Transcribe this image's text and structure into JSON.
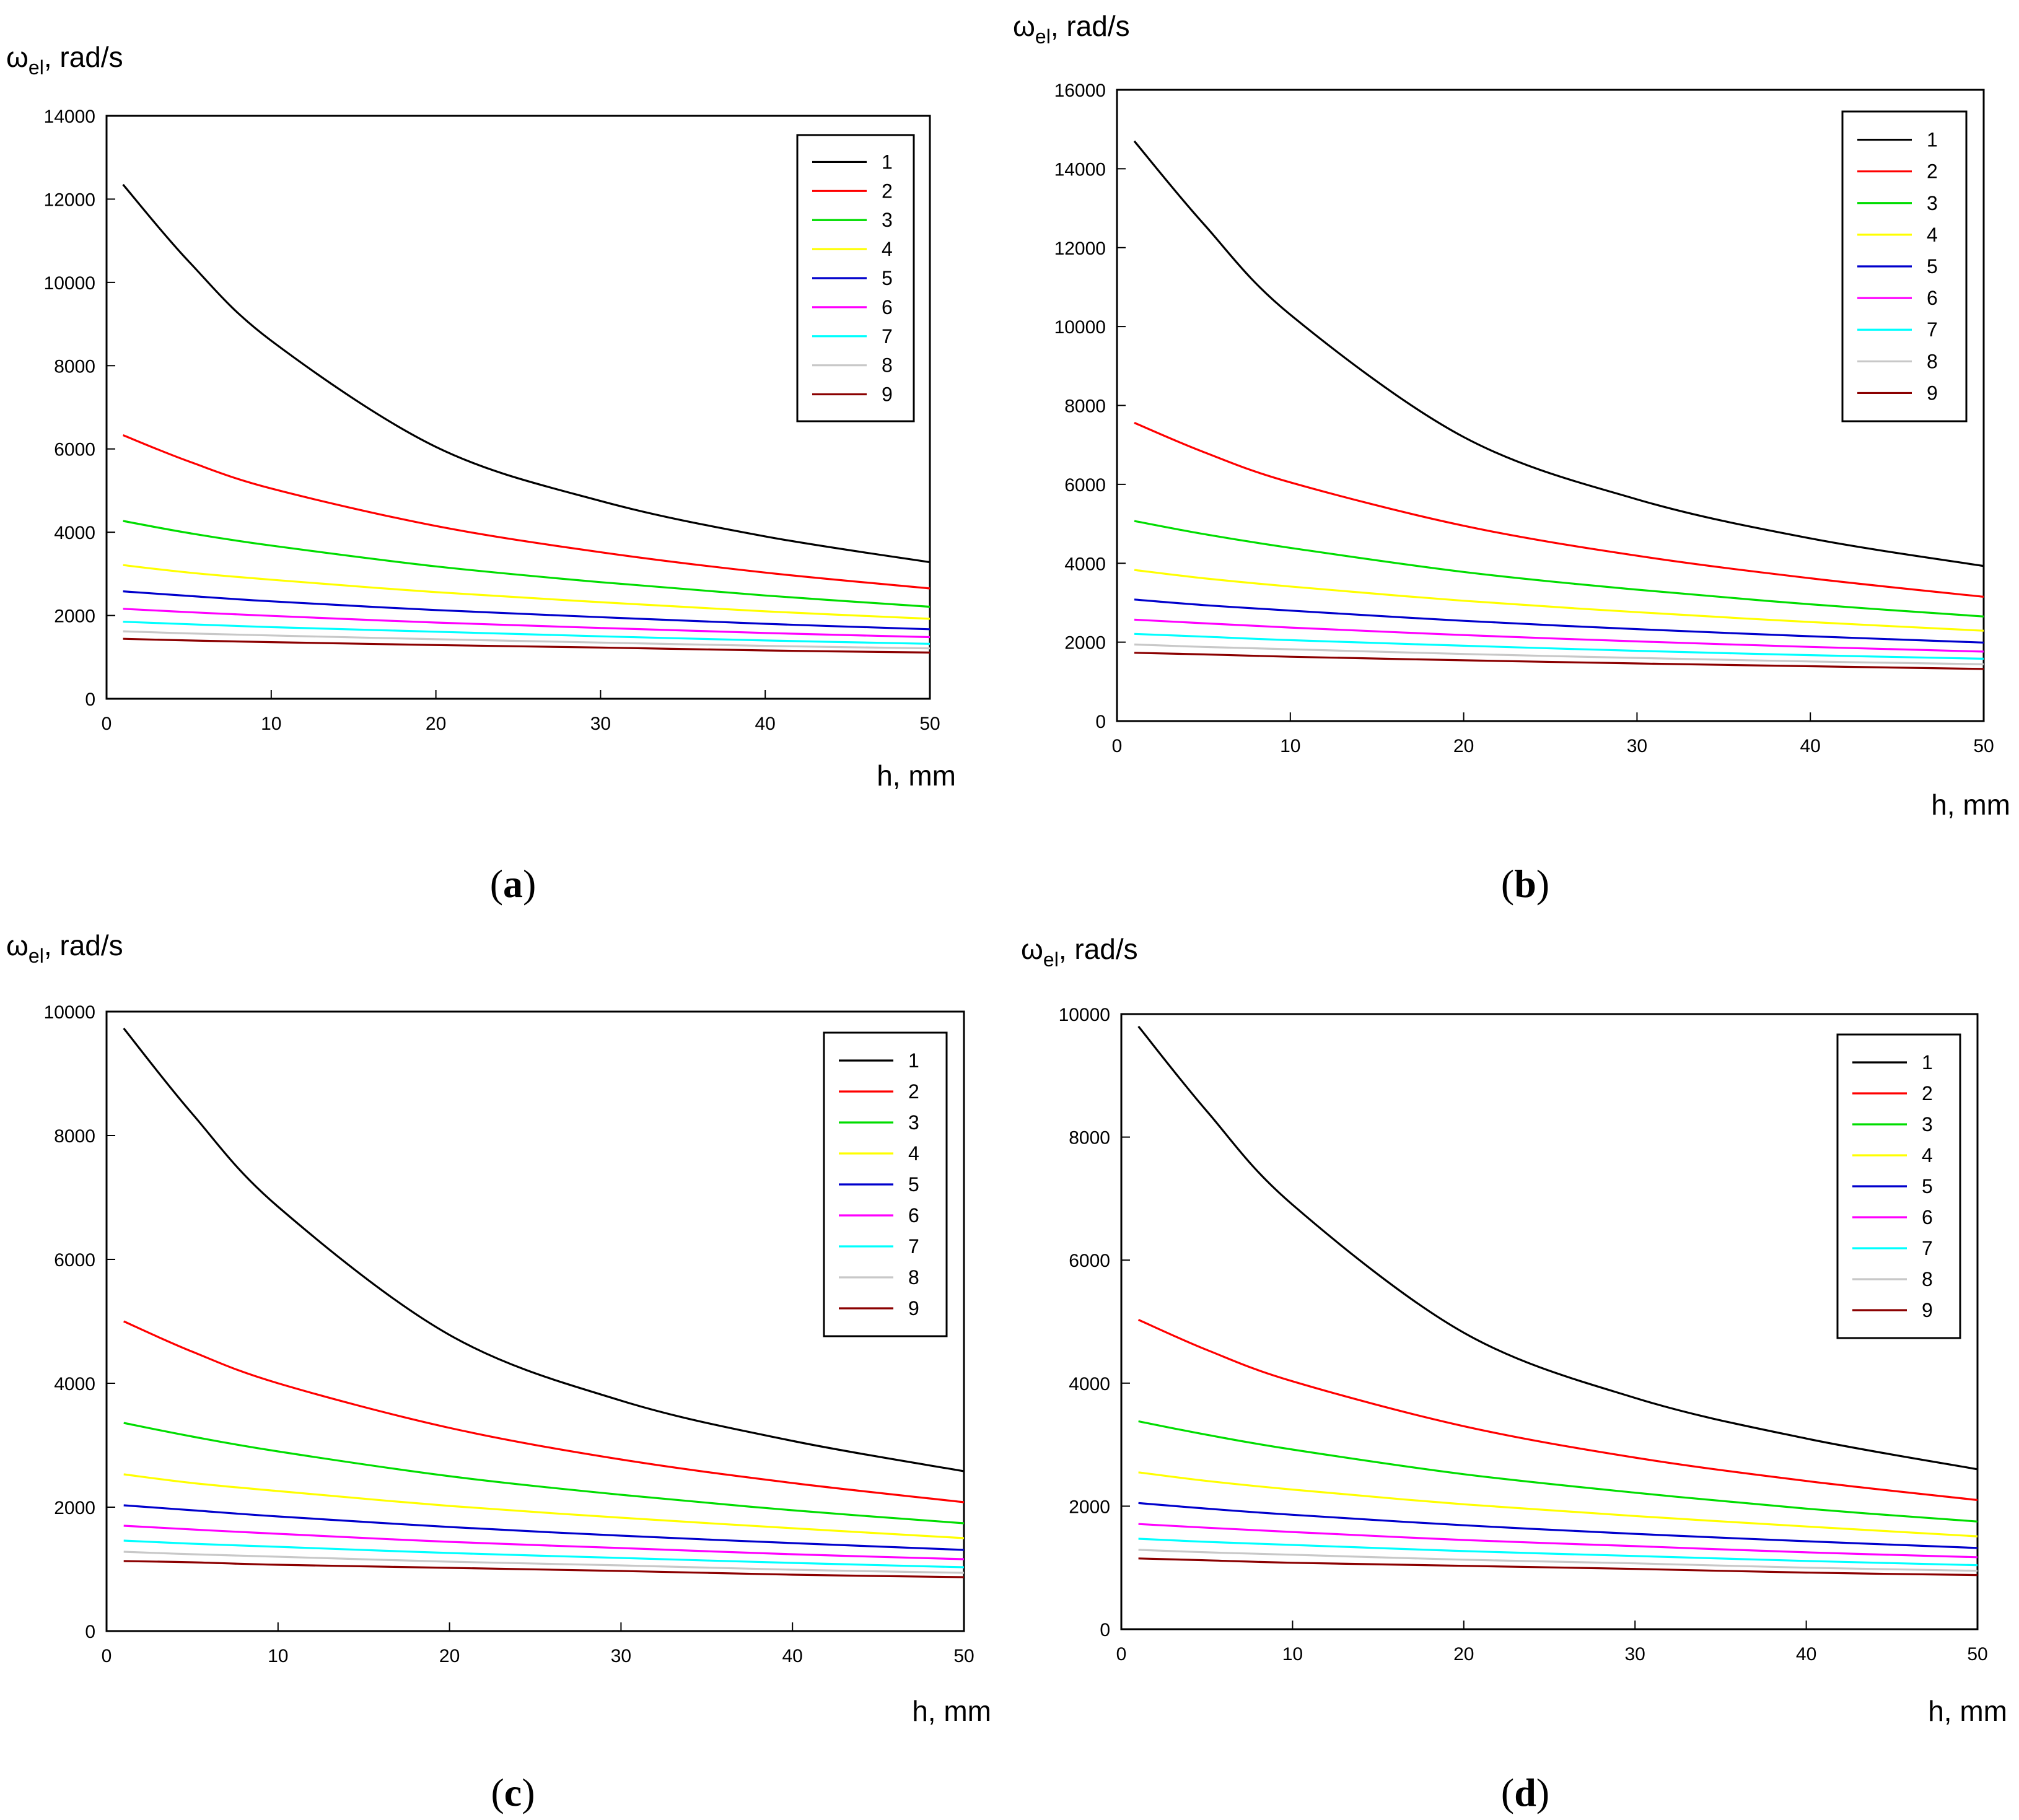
{
  "chart_data": [
    {
      "type": "line",
      "panel_label": "a",
      "ylabel_symbol": "ω",
      "ylabel_sub": "el",
      "ylabel_unit": ", rad/s",
      "xlabel": "h, mm",
      "xlim": [
        0,
        50
      ],
      "ylim": [
        0,
        14000
      ],
      "xticks": [
        0,
        10,
        20,
        30,
        40,
        50
      ],
      "yticks": [
        0,
        2000,
        4000,
        6000,
        8000,
        10000,
        12000,
        14000
      ],
      "legend_position": "top-right",
      "series": [
        {
          "name": "1",
          "color": "#000000",
          "x": [
            1,
            5,
            10,
            20,
            30,
            40,
            50
          ],
          "values": [
            12350,
            10500,
            8600,
            6050,
            4750,
            3900,
            3280
          ]
        },
        {
          "name": "2",
          "color": "#ff0000",
          "x": [
            1,
            5,
            10,
            20,
            30,
            40,
            50
          ],
          "values": [
            6330,
            5700,
            5050,
            4150,
            3520,
            3030,
            2650
          ]
        },
        {
          "name": "3",
          "color": "#00dd00",
          "x": [
            1,
            5,
            10,
            20,
            30,
            40,
            50
          ],
          "values": [
            4270,
            3980,
            3680,
            3180,
            2800,
            2480,
            2210
          ]
        },
        {
          "name": "4",
          "color": "#ffff00",
          "x": [
            1,
            5,
            10,
            20,
            30,
            40,
            50
          ],
          "values": [
            3210,
            3030,
            2860,
            2560,
            2320,
            2100,
            1920
          ]
        },
        {
          "name": "5",
          "color": "#0000cc",
          "x": [
            1,
            5,
            10,
            20,
            30,
            40,
            50
          ],
          "values": [
            2580,
            2470,
            2340,
            2130,
            1960,
            1800,
            1670
          ]
        },
        {
          "name": "6",
          "color": "#ff00ff",
          "x": [
            1,
            5,
            10,
            20,
            30,
            40,
            50
          ],
          "values": [
            2160,
            2080,
            1990,
            1830,
            1700,
            1580,
            1480
          ]
        },
        {
          "name": "7",
          "color": "#00ffff",
          "x": [
            1,
            5,
            10,
            20,
            30,
            40,
            50
          ],
          "values": [
            1850,
            1790,
            1720,
            1610,
            1500,
            1400,
            1320
          ]
        },
        {
          "name": "8",
          "color": "#c8c8c8",
          "x": [
            1,
            5,
            10,
            20,
            30,
            40,
            50
          ],
          "values": [
            1620,
            1570,
            1520,
            1430,
            1350,
            1270,
            1210
          ]
        },
        {
          "name": "9",
          "color": "#8b0000",
          "x": [
            1,
            5,
            10,
            20,
            30,
            40,
            50
          ],
          "values": [
            1440,
            1400,
            1360,
            1290,
            1230,
            1160,
            1110
          ]
        }
      ]
    },
    {
      "type": "line",
      "panel_label": "b",
      "ylabel_symbol": "ω",
      "ylabel_sub": "el",
      "ylabel_unit": ", rad/s",
      "xlabel": "h, mm",
      "xlim": [
        0,
        50
      ],
      "ylim": [
        0,
        16000
      ],
      "xticks": [
        0,
        10,
        20,
        30,
        40,
        50
      ],
      "yticks": [
        0,
        2000,
        4000,
        6000,
        8000,
        10000,
        12000,
        14000,
        16000
      ],
      "legend_position": "top-right",
      "series": [
        {
          "name": "1",
          "color": "#000000",
          "x": [
            1,
            5,
            10,
            20,
            30,
            40,
            50
          ],
          "values": [
            14700,
            12600,
            10300,
            7200,
            5620,
            4630,
            3930
          ]
        },
        {
          "name": "2",
          "color": "#ff0000",
          "x": [
            1,
            5,
            10,
            20,
            30,
            40,
            50
          ],
          "values": [
            7560,
            6820,
            6050,
            4950,
            4190,
            3620,
            3150
          ]
        },
        {
          "name": "3",
          "color": "#00dd00",
          "x": [
            1,
            5,
            10,
            20,
            30,
            40,
            50
          ],
          "values": [
            5070,
            4740,
            4390,
            3780,
            3330,
            2960,
            2650
          ]
        },
        {
          "name": "4",
          "color": "#ffff00",
          "x": [
            1,
            5,
            10,
            20,
            30,
            40,
            50
          ],
          "values": [
            3830,
            3620,
            3410,
            3050,
            2760,
            2510,
            2290
          ]
        },
        {
          "name": "5",
          "color": "#0000cc",
          "x": [
            1,
            5,
            10,
            20,
            30,
            40,
            50
          ],
          "values": [
            3080,
            2940,
            2800,
            2540,
            2330,
            2150,
            1990
          ]
        },
        {
          "name": "6",
          "color": "#ff00ff",
          "x": [
            1,
            5,
            10,
            20,
            30,
            40,
            50
          ],
          "values": [
            2570,
            2480,
            2370,
            2180,
            2020,
            1880,
            1760
          ]
        },
        {
          "name": "7",
          "color": "#00ffff",
          "x": [
            1,
            5,
            10,
            20,
            30,
            40,
            50
          ],
          "values": [
            2210,
            2140,
            2050,
            1910,
            1780,
            1670,
            1580
          ]
        },
        {
          "name": "8",
          "color": "#c8c8c8",
          "x": [
            1,
            5,
            10,
            20,
            30,
            40,
            50
          ],
          "values": [
            1940,
            1880,
            1820,
            1700,
            1600,
            1510,
            1440
          ]
        },
        {
          "name": "9",
          "color": "#8b0000",
          "x": [
            1,
            5,
            10,
            20,
            30,
            40,
            50
          ],
          "values": [
            1730,
            1690,
            1630,
            1540,
            1460,
            1390,
            1320
          ]
        }
      ]
    },
    {
      "type": "line",
      "panel_label": "c",
      "ylabel_symbol": "ω",
      "ylabel_sub": "el",
      "ylabel_unit": ", rad/s",
      "xlabel": "h, mm",
      "xlim": [
        0,
        50
      ],
      "ylim": [
        0,
        10000
      ],
      "xticks": [
        0,
        10,
        20,
        30,
        40,
        50
      ],
      "yticks": [
        0,
        2000,
        4000,
        6000,
        8000,
        10000
      ],
      "legend_position": "top-right",
      "series": [
        {
          "name": "1",
          "color": "#000000",
          "x": [
            1,
            5,
            10,
            20,
            30,
            40,
            50
          ],
          "values": [
            9730,
            8350,
            6850,
            4780,
            3720,
            3070,
            2580
          ]
        },
        {
          "name": "2",
          "color": "#ff0000",
          "x": [
            1,
            5,
            10,
            20,
            30,
            40,
            50
          ],
          "values": [
            5000,
            4510,
            4000,
            3280,
            2770,
            2390,
            2080
          ]
        },
        {
          "name": "3",
          "color": "#00dd00",
          "x": [
            1,
            5,
            10,
            20,
            30,
            40,
            50
          ],
          "values": [
            3360,
            3140,
            2900,
            2500,
            2200,
            1950,
            1740
          ]
        },
        {
          "name": "4",
          "color": "#ffff00",
          "x": [
            1,
            5,
            10,
            20,
            30,
            40,
            50
          ],
          "values": [
            2530,
            2390,
            2260,
            2020,
            1830,
            1660,
            1500
          ]
        },
        {
          "name": "5",
          "color": "#0000cc",
          "x": [
            1,
            5,
            10,
            20,
            30,
            40,
            50
          ],
          "values": [
            2030,
            1950,
            1850,
            1680,
            1540,
            1420,
            1310
          ]
        },
        {
          "name": "6",
          "color": "#ff00ff",
          "x": [
            1,
            5,
            10,
            20,
            30,
            40,
            50
          ],
          "values": [
            1700,
            1640,
            1570,
            1440,
            1340,
            1240,
            1160
          ]
        },
        {
          "name": "7",
          "color": "#00ffff",
          "x": [
            1,
            5,
            10,
            20,
            30,
            40,
            50
          ],
          "values": [
            1460,
            1410,
            1360,
            1260,
            1180,
            1100,
            1030
          ]
        },
        {
          "name": "8",
          "color": "#c8c8c8",
          "x": [
            1,
            5,
            10,
            20,
            30,
            40,
            50
          ],
          "values": [
            1280,
            1240,
            1200,
            1120,
            1060,
            990,
            940
          ]
        },
        {
          "name": "9",
          "color": "#8b0000",
          "x": [
            1,
            5,
            10,
            20,
            30,
            40,
            50
          ],
          "values": [
            1130,
            1110,
            1070,
            1020,
            970,
            910,
            870
          ]
        }
      ]
    },
    {
      "type": "line",
      "panel_label": "d",
      "ylabel_symbol": "ω",
      "ylabel_sub": "el",
      "ylabel_unit": ", rad/s",
      "xlabel": "h, mm",
      "xlim": [
        0,
        50
      ],
      "ylim": [
        0,
        10000
      ],
      "xticks": [
        0,
        10,
        20,
        30,
        40,
        50
      ],
      "yticks": [
        0,
        2000,
        4000,
        6000,
        8000,
        10000
      ],
      "legend_position": "top-right",
      "series": [
        {
          "name": "1",
          "color": "#000000",
          "x": [
            1,
            5,
            10,
            20,
            30,
            40,
            50
          ],
          "values": [
            9800,
            8420,
            6900,
            4820,
            3760,
            3100,
            2600
          ]
        },
        {
          "name": "2",
          "color": "#ff0000",
          "x": [
            1,
            5,
            10,
            20,
            30,
            40,
            50
          ],
          "values": [
            5030,
            4540,
            4030,
            3300,
            2790,
            2410,
            2100
          ]
        },
        {
          "name": "3",
          "color": "#00dd00",
          "x": [
            1,
            5,
            10,
            20,
            30,
            40,
            50
          ],
          "values": [
            3380,
            3160,
            2920,
            2520,
            2220,
            1960,
            1750
          ]
        },
        {
          "name": "4",
          "color": "#ffff00",
          "x": [
            1,
            5,
            10,
            20,
            30,
            40,
            50
          ],
          "values": [
            2550,
            2410,
            2270,
            2030,
            1840,
            1670,
            1510
          ]
        },
        {
          "name": "5",
          "color": "#0000cc",
          "x": [
            1,
            5,
            10,
            20,
            30,
            40,
            50
          ],
          "values": [
            2050,
            1960,
            1860,
            1690,
            1550,
            1430,
            1320
          ]
        },
        {
          "name": "6",
          "color": "#ff00ff",
          "x": [
            1,
            5,
            10,
            20,
            30,
            40,
            50
          ],
          "values": [
            1710,
            1650,
            1580,
            1450,
            1350,
            1250,
            1170
          ]
        },
        {
          "name": "7",
          "color": "#00ffff",
          "x": [
            1,
            5,
            10,
            20,
            30,
            40,
            50
          ],
          "values": [
            1470,
            1420,
            1370,
            1270,
            1190,
            1110,
            1040
          ]
        },
        {
          "name": "8",
          "color": "#c8c8c8",
          "x": [
            1,
            5,
            10,
            20,
            30,
            40,
            50
          ],
          "values": [
            1290,
            1250,
            1210,
            1130,
            1070,
            1000,
            950
          ]
        },
        {
          "name": "9",
          "color": "#8b0000",
          "x": [
            1,
            5,
            10,
            20,
            30,
            40,
            50
          ],
          "values": [
            1150,
            1120,
            1080,
            1030,
            980,
            920,
            880
          ]
        }
      ]
    }
  ]
}
